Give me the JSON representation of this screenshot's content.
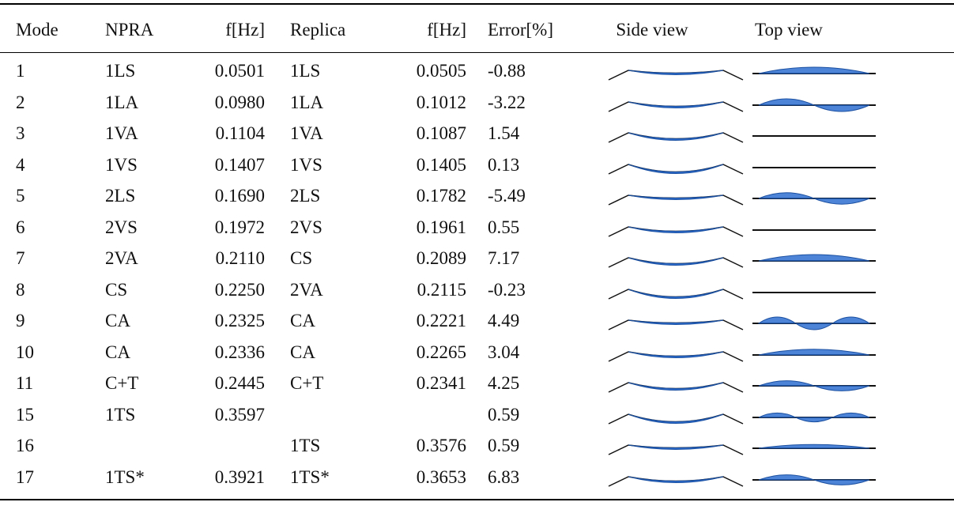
{
  "table": {
    "header": [
      "Mode",
      "NPRA",
      "f[Hz]",
      "Replica",
      "f[Hz]",
      "Error[%]",
      "Side view",
      "Top view"
    ],
    "rows": [
      [
        "1",
        "1LS",
        "0.0501",
        "1LS",
        "0.0505",
        "-0.88"
      ],
      [
        "2",
        "1LA",
        "0.0980",
        "1LA",
        "0.1012",
        "-3.22"
      ],
      [
        "3",
        "1VA",
        "0.1104",
        "1VA",
        "0.1087",
        "1.54"
      ],
      [
        "4",
        "1VS",
        "0.1407",
        "1VS",
        "0.1405",
        "0.13"
      ],
      [
        "5",
        "2LS",
        "0.1690",
        "2LS",
        "0.1782",
        "-5.49"
      ],
      [
        "6",
        "2VS",
        "0.1972",
        "2VS",
        "0.1961",
        "0.55"
      ],
      [
        "7",
        "2VA",
        "0.2110",
        "CS",
        "0.2089",
        "7.17"
      ],
      [
        "8",
        "CS",
        "0.2250",
        "2VA",
        "0.2115",
        "-0.23"
      ],
      [
        "9",
        "CA",
        "0.2325",
        "CA",
        "0.2221",
        "4.49"
      ],
      [
        "10",
        "CA",
        "0.2336",
        "CA",
        "0.2265",
        "3.04"
      ],
      [
        "11",
        "C+T",
        "0.2445",
        "C+T",
        "0.2341",
        "4.25"
      ],
      [
        "15",
        "1TS",
        "0.3597",
        null,
        null,
        "0.59"
      ],
      [
        "16",
        null,
        null,
        "1TS",
        "0.3576",
        "0.59"
      ],
      [
        "17",
        "1TS*",
        "0.3921",
        "1TS*",
        "0.3653",
        "6.83"
      ]
    ]
  }
}
